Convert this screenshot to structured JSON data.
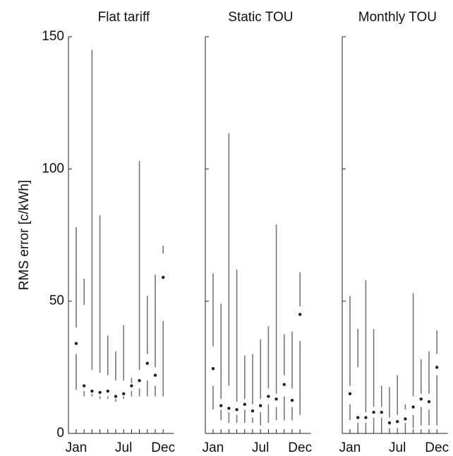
{
  "chart_data": [
    {
      "type": "range",
      "title": "Flat tariff",
      "ylabel": "RMS error [c/kWh]",
      "categories": [
        "Jan",
        null,
        null,
        null,
        null,
        null,
        "Jul",
        null,
        null,
        null,
        null,
        "Dec"
      ],
      "min": [
        16.5,
        14,
        14,
        13,
        13,
        12,
        13,
        14,
        14,
        14,
        14,
        14
      ],
      "q1": [
        30,
        16,
        15,
        14,
        14,
        13,
        14,
        16,
        17,
        20,
        18,
        42.5
      ],
      "median": [
        34,
        18,
        16,
        15.5,
        16,
        14,
        15,
        18,
        20,
        26.5,
        22,
        59
      ],
      "q3": [
        40,
        48.5,
        24,
        23,
        22,
        20,
        20,
        19,
        24,
        30,
        25,
        68
      ],
      "max": [
        78,
        58.5,
        145,
        82.5,
        37,
        31,
        41,
        21,
        103,
        52,
        60,
        71
      ],
      "ylim": [
        0,
        150
      ],
      "yticks": [
        0,
        50,
        100,
        150
      ],
      "color": "#777777",
      "dot_color": "#222222"
    },
    {
      "type": "range",
      "title": "Static TOU",
      "categories": [
        "Jan",
        null,
        null,
        null,
        null,
        null,
        "Jul",
        null,
        null,
        null,
        null,
        "Dec"
      ],
      "min": [
        9,
        5,
        4,
        4,
        4,
        4,
        3,
        4,
        5,
        5,
        5,
        7
      ],
      "q1": [
        18,
        9,
        8,
        7,
        9,
        6,
        8,
        11,
        10,
        14,
        10,
        35
      ],
      "median": [
        24.5,
        10.5,
        9.5,
        9,
        11,
        8.5,
        10.5,
        14,
        13,
        18.5,
        12.5,
        45
      ],
      "q3": [
        33,
        13,
        18,
        12,
        13,
        11,
        13,
        17,
        15,
        22,
        17,
        48
      ],
      "max": [
        60.5,
        49,
        113.5,
        62,
        29.5,
        30,
        35.5,
        40.5,
        79,
        37.5,
        38.5,
        61
      ],
      "ylim": [
        0,
        150
      ],
      "color": "#777777",
      "dot_color": "#222222"
    },
    {
      "type": "range",
      "title": "Monthly TOU",
      "categories": [
        "Jan",
        null,
        null,
        null,
        null,
        null,
        "Jul",
        null,
        null,
        null,
        null,
        "Dec"
      ],
      "min": [
        5,
        1,
        1,
        1,
        1,
        0.5,
        0.5,
        1,
        2,
        3,
        3,
        3
      ],
      "q1": [
        11,
        4,
        4,
        6,
        6,
        2,
        2,
        4,
        7,
        10,
        9,
        22
      ],
      "median": [
        15,
        6,
        6,
        8,
        8,
        4,
        4.5,
        5.5,
        10,
        13,
        12,
        25
      ],
      "q3": [
        18,
        25,
        8,
        10,
        10,
        6,
        7,
        9,
        14,
        15,
        15,
        30
      ],
      "max": [
        52,
        39.5,
        58,
        39.5,
        18,
        17.5,
        22,
        11,
        53,
        28,
        31,
        39
      ],
      "ylim": [
        0,
        150
      ],
      "color": "#777777",
      "dot_color": "#222222"
    }
  ]
}
